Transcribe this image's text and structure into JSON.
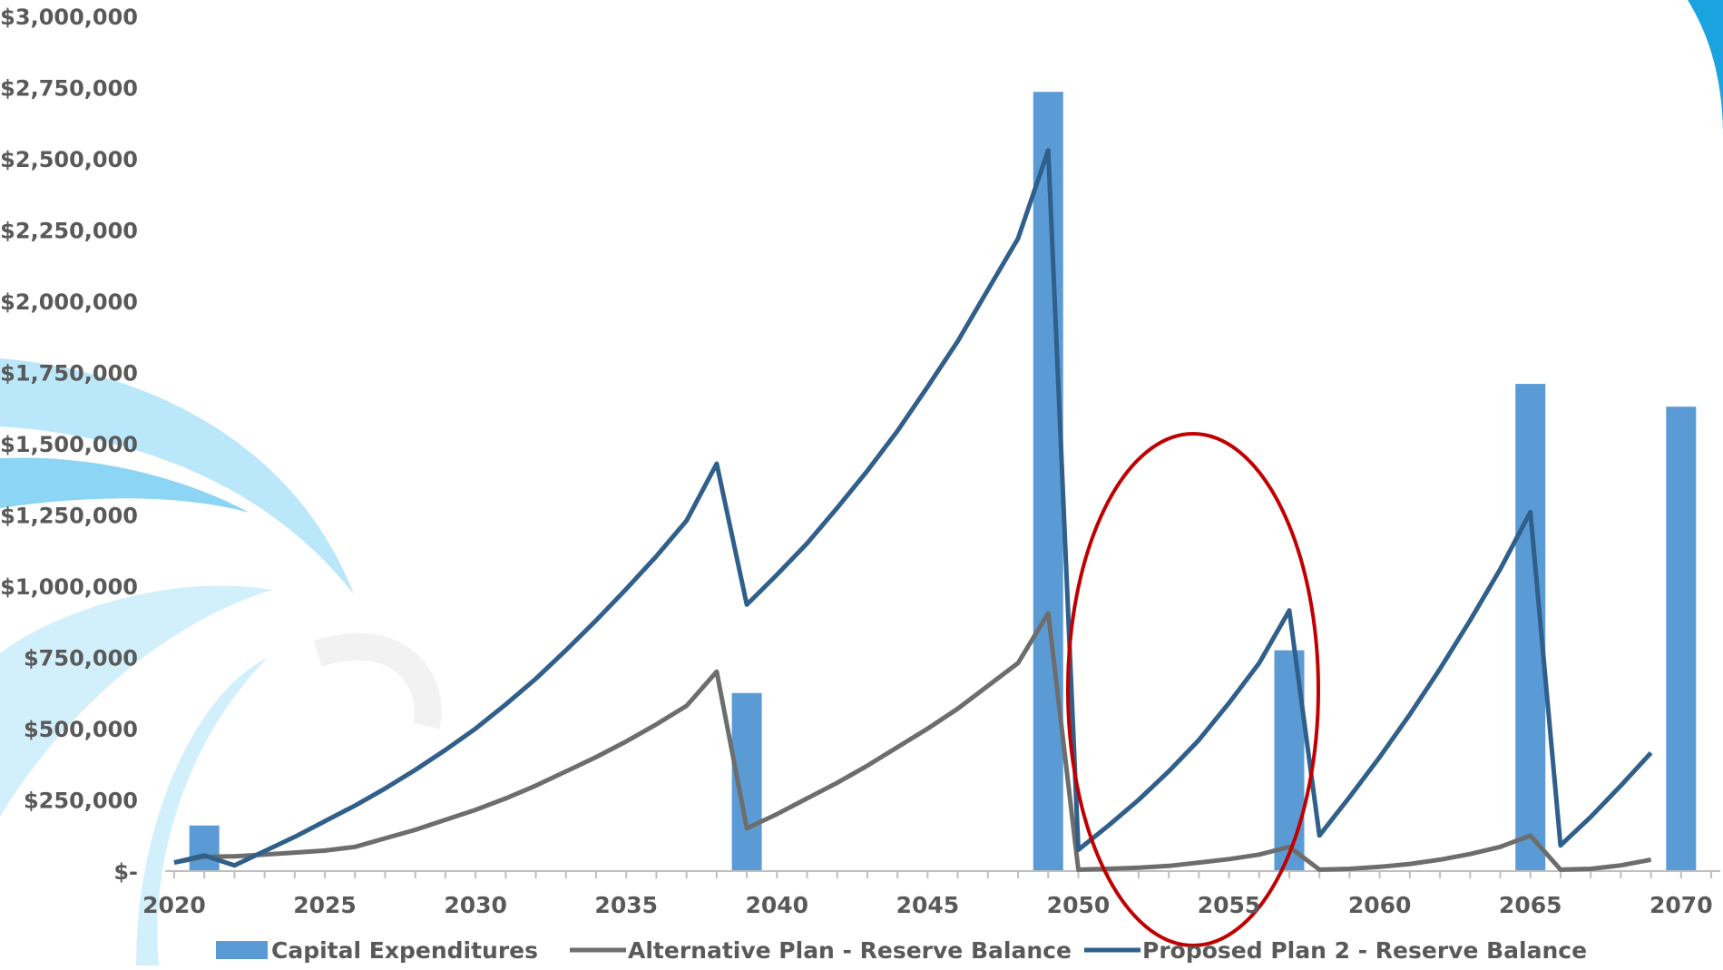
{
  "chart_data": {
    "type": "bar",
    "title": "",
    "xlabel": "",
    "ylabel": "",
    "xlim": [
      2019.7,
      2071.3
    ],
    "ylim": [
      0,
      3000000
    ],
    "y_ticks": [
      {
        "value": 0,
        "label": "$-"
      },
      {
        "value": 250000,
        "label": "$250,000"
      },
      {
        "value": 500000,
        "label": "$500,000"
      },
      {
        "value": 750000,
        "label": "$750,000"
      },
      {
        "value": 1000000,
        "label": "$1,000,000"
      },
      {
        "value": 1250000,
        "label": "$1,250,000"
      },
      {
        "value": 1500000,
        "label": "$1,500,000"
      },
      {
        "value": 1750000,
        "label": "$1,750,000"
      },
      {
        "value": 2000000,
        "label": "$2,000,000"
      },
      {
        "value": 2250000,
        "label": "$2,250,000"
      },
      {
        "value": 2500000,
        "label": "$2,500,000"
      },
      {
        "value": 2750000,
        "label": "$2,750,000"
      },
      {
        "value": 3000000,
        "label": "$3,000,000"
      }
    ],
    "x_ticks": [
      "2020",
      "2025",
      "2030",
      "2035",
      "2040",
      "2045",
      "2050",
      "2055",
      "2060",
      "2065",
      "2070"
    ],
    "grid": false,
    "legend": "bottom",
    "series": [
      {
        "name": "Capital Expenditures",
        "kind": "bar",
        "color": "#5b9bd5",
        "points": [
          [
            2021,
            160000
          ],
          [
            2039,
            625000
          ],
          [
            2049,
            2735000
          ],
          [
            2057,
            775000
          ],
          [
            2065,
            1710000
          ],
          [
            2070,
            1630000
          ]
        ]
      },
      {
        "name": "Alternative Plan - Reserve Balance",
        "kind": "line",
        "color": "#6d6d6d",
        "points": [
          [
            2020,
            30000
          ],
          [
            2021,
            50000
          ],
          [
            2022,
            52000
          ],
          [
            2023,
            58000
          ],
          [
            2024,
            65000
          ],
          [
            2025,
            72000
          ],
          [
            2026,
            85000
          ],
          [
            2027,
            115000
          ],
          [
            2028,
            145000
          ],
          [
            2029,
            180000
          ],
          [
            2030,
            215000
          ],
          [
            2031,
            255000
          ],
          [
            2032,
            300000
          ],
          [
            2033,
            350000
          ],
          [
            2034,
            400000
          ],
          [
            2035,
            455000
          ],
          [
            2036,
            515000
          ],
          [
            2037,
            580000
          ],
          [
            2038,
            700000
          ],
          [
            2039,
            150000
          ],
          [
            2040,
            200000
          ],
          [
            2041,
            255000
          ],
          [
            2042,
            310000
          ],
          [
            2043,
            370000
          ],
          [
            2044,
            435000
          ],
          [
            2045,
            500000
          ],
          [
            2046,
            570000
          ],
          [
            2047,
            650000
          ],
          [
            2048,
            730000
          ],
          [
            2049,
            905000
          ],
          [
            2050,
            5000
          ],
          [
            2051,
            8000
          ],
          [
            2052,
            12000
          ],
          [
            2053,
            18000
          ],
          [
            2054,
            30000
          ],
          [
            2055,
            42000
          ],
          [
            2056,
            58000
          ],
          [
            2057,
            85000
          ],
          [
            2058,
            5000
          ],
          [
            2059,
            8000
          ],
          [
            2060,
            15000
          ],
          [
            2061,
            25000
          ],
          [
            2062,
            40000
          ],
          [
            2063,
            60000
          ],
          [
            2064,
            85000
          ],
          [
            2065,
            125000
          ],
          [
            2066,
            5000
          ],
          [
            2067,
            8000
          ],
          [
            2068,
            20000
          ],
          [
            2069,
            40000
          ]
        ]
      },
      {
        "name": "Proposed Plan 2 - Reserve Balance",
        "kind": "line",
        "color": "#2f5f8a",
        "points": [
          [
            2020,
            30000
          ],
          [
            2021,
            55000
          ],
          [
            2022,
            20000
          ],
          [
            2023,
            70000
          ],
          [
            2024,
            120000
          ],
          [
            2025,
            175000
          ],
          [
            2026,
            230000
          ],
          [
            2027,
            290000
          ],
          [
            2028,
            355000
          ],
          [
            2029,
            425000
          ],
          [
            2030,
            500000
          ],
          [
            2031,
            585000
          ],
          [
            2032,
            675000
          ],
          [
            2033,
            775000
          ],
          [
            2034,
            880000
          ],
          [
            2035,
            990000
          ],
          [
            2036,
            1105000
          ],
          [
            2037,
            1230000
          ],
          [
            2038,
            1430000
          ],
          [
            2039,
            935000
          ],
          [
            2040,
            1040000
          ],
          [
            2041,
            1150000
          ],
          [
            2042,
            1275000
          ],
          [
            2043,
            1405000
          ],
          [
            2044,
            1545000
          ],
          [
            2045,
            1700000
          ],
          [
            2046,
            1860000
          ],
          [
            2047,
            2040000
          ],
          [
            2048,
            2220000
          ],
          [
            2049,
            2530000
          ],
          [
            2050,
            75000
          ],
          [
            2051,
            160000
          ],
          [
            2052,
            250000
          ],
          [
            2053,
            350000
          ],
          [
            2054,
            460000
          ],
          [
            2055,
            590000
          ],
          [
            2056,
            730000
          ],
          [
            2057,
            915000
          ],
          [
            2058,
            125000
          ],
          [
            2059,
            260000
          ],
          [
            2060,
            400000
          ],
          [
            2061,
            550000
          ],
          [
            2062,
            710000
          ],
          [
            2063,
            880000
          ],
          [
            2064,
            1060000
          ],
          [
            2065,
            1260000
          ],
          [
            2066,
            90000
          ],
          [
            2067,
            190000
          ],
          [
            2068,
            300000
          ],
          [
            2069,
            415000
          ]
        ]
      }
    ]
  }
}
